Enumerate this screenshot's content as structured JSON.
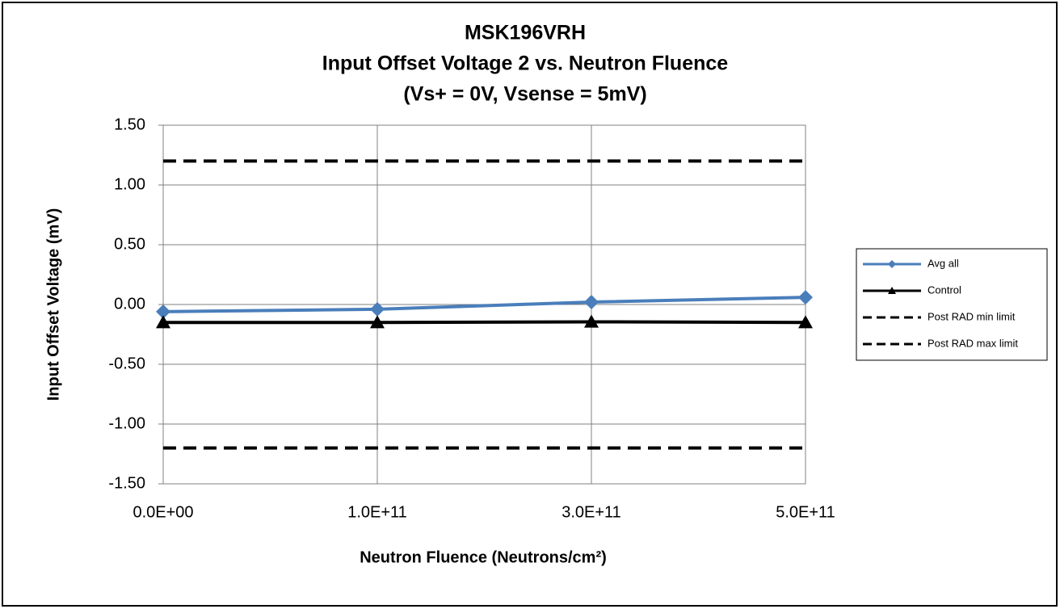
{
  "chart_data": {
    "type": "line",
    "title": [
      "MSK196VRH",
      "Input Offset Voltage 2 vs. Neutron Fluence",
      "(Vs+ = 0V, Vsense = 5mV)"
    ],
    "x_label": "Neutron Fluence (Neutrons/cm²)",
    "y_label": "Input Offset Voltage (mV)",
    "categories": [
      "0.0E+00",
      "1.0E+11",
      "3.0E+11",
      "5.0E+11"
    ],
    "series": [
      {
        "name": "Avg all",
        "color": "#4a7ebb",
        "marker": "diamond",
        "dashed": false,
        "values": [
          -0.06,
          -0.04,
          0.02,
          0.06
        ]
      },
      {
        "name": "Control",
        "color": "#000000",
        "marker": "triangle",
        "dashed": false,
        "values": [
          -0.15,
          -0.15,
          -0.145,
          -0.15
        ]
      },
      {
        "name": "Post RAD min limit",
        "color": "#000000",
        "marker": null,
        "dashed": true,
        "values": [
          -1.2,
          -1.2,
          -1.2,
          -1.2
        ]
      },
      {
        "name": "Post RAD max limit",
        "color": "#000000",
        "marker": null,
        "dashed": true,
        "values": [
          1.2,
          1.2,
          1.2,
          1.2
        ]
      }
    ],
    "ylim": [
      -1.5,
      1.5
    ],
    "yticks": [
      {
        "value": -1.5,
        "label": "-1.50"
      },
      {
        "value": -1,
        "label": "-1.00"
      },
      {
        "value": -0.5,
        "label": "-0.50"
      },
      {
        "value": 0,
        "label": "0.00"
      },
      {
        "value": 0.5,
        "label": "0.50"
      },
      {
        "value": 1,
        "label": "1.00"
      },
      {
        "value": 1.5,
        "label": "1.50"
      }
    ],
    "grid": true,
    "legend": "right"
  }
}
